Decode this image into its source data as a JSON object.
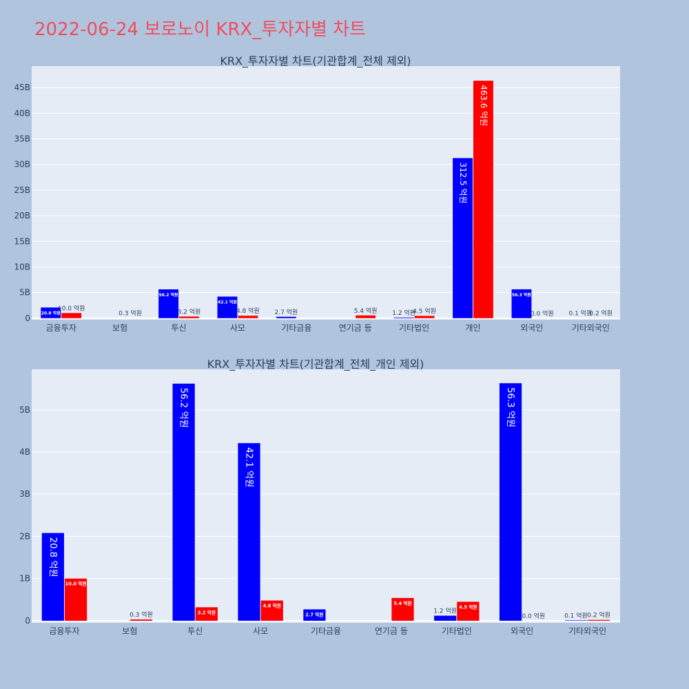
{
  "page": {
    "title": "2022-06-24 보로노이 KRX_투자자별 차트"
  },
  "colors": {
    "background": "#b0c4de",
    "plot_bg": "#e5ecf6",
    "grid": "#ffffff",
    "title_color": "#ef4e5e",
    "buy": "#0000ff",
    "sell": "#ff0000",
    "text": "#2a3f5f"
  },
  "chart_data": [
    {
      "type": "bar",
      "title": "KRX_투자자별 차트(기관합계_전체 제외)",
      "categories": [
        "금융투자",
        "보험",
        "투신",
        "사모",
        "기타금융",
        "연기금 등",
        "기타법인",
        "개인",
        "외국인",
        "기타외국인"
      ],
      "series": [
        {
          "color": "#0000ff",
          "values": [
            2.08,
            0,
            5.62,
            4.21,
            0.27,
            0,
            0.12,
            31.25,
            5.63,
            0.01
          ],
          "labels": [
            "20.8 억원",
            "",
            "56.2 억원",
            "42.1 억원",
            "2.7 억원",
            "",
            "1.2 억원",
            "312.5 억원",
            "56.3 억원",
            "0.1 억원"
          ]
        },
        {
          "color": "#ff0000",
          "values": [
            1.0,
            0.03,
            0.32,
            0.48,
            0,
            0.54,
            0.45,
            46.36,
            0,
            0.02
          ],
          "labels": [
            "10.0 억원",
            "0.3 억원",
            "3.2 억원",
            "4.8 억원",
            "",
            "5.4 억원",
            "4.5 억원",
            "463.6 억원",
            "0.0 억원",
            "0.2 억원"
          ]
        }
      ],
      "yticks": [
        0,
        5,
        10,
        15,
        20,
        25,
        30,
        35,
        40,
        45
      ],
      "ytick_labels": [
        "0",
        "5B",
        "10B",
        "15B",
        "20B",
        "25B",
        "30B",
        "35B",
        "40B",
        "45B"
      ],
      "ylim": [
        -0.3,
        49.2
      ],
      "grid": true
    },
    {
      "type": "bar",
      "title": "KRX_투자자별 차트(기관합계_전체_개인 제외)",
      "categories": [
        "금융투자",
        "보험",
        "투신",
        "사모",
        "기타금융",
        "연기금 등",
        "기타법인",
        "외국인",
        "기타외국인"
      ],
      "series": [
        {
          "color": "#0000ff",
          "values": [
            2.08,
            0,
            5.62,
            4.21,
            0.27,
            0,
            0.12,
            5.63,
            0.01
          ],
          "labels": [
            "20.8 억원",
            "",
            "56.2 억원",
            "42.1 억원",
            "2.7 억원",
            "",
            "1.2 억원",
            "56.3 억원",
            "0.1 억원"
          ]
        },
        {
          "color": "#ff0000",
          "values": [
            1.0,
            0.03,
            0.32,
            0.48,
            0,
            0.54,
            0.45,
            0,
            0.02
          ],
          "labels": [
            "10.0 억원",
            "0.3 억원",
            "3.2 억원",
            "4.8 억원",
            "",
            "5.4 억원",
            "4.5 억원",
            "0.0 억원",
            "0.2 억원"
          ]
        }
      ],
      "yticks": [
        0,
        1,
        2,
        3,
        4,
        5
      ],
      "ytick_labels": [
        "0",
        "1B",
        "2B",
        "3B",
        "4B",
        "5B"
      ],
      "ylim": [
        -0.05,
        5.96
      ],
      "grid": true
    }
  ]
}
